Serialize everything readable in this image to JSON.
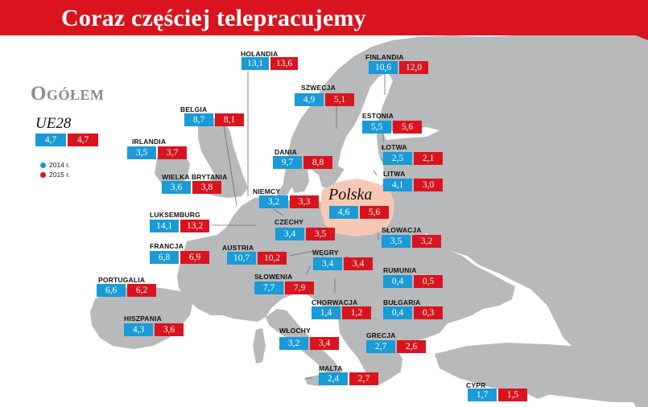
{
  "title": "Coraz częściej telepracujemy",
  "subtitle": "Ogółem",
  "ue": {
    "label": "UE28",
    "v2014": "4,7",
    "v2015": "4,7"
  },
  "legend": {
    "y2014": "2014 r.",
    "y2015": "2015 r."
  },
  "colors": {
    "y2014": "#1a9ad6",
    "y2015": "#d9141e",
    "poland": "#f6c9b4",
    "land": "#b7b9bb",
    "sea": "#ffffff"
  },
  "poland_label": "Polska",
  "chart_data": {
    "type": "table",
    "title": "Coraz częściej telepracujemy",
    "subtitle": "Ogółem",
    "columns": [
      "2014 r.",
      "2015 r."
    ],
    "eu_average": {
      "name": "UE28",
      "y2014": 4.7,
      "y2015": 4.7
    },
    "countries": [
      {
        "name": "Holandia",
        "y2014": 13.1,
        "y2015": 13.6
      },
      {
        "name": "Finlandia",
        "y2014": 10.6,
        "y2015": 12.0
      },
      {
        "name": "Szwecja",
        "y2014": 4.9,
        "y2015": 5.1
      },
      {
        "name": "Belgia",
        "y2014": 8.7,
        "y2015": 8.1
      },
      {
        "name": "Estonia",
        "y2014": 5.5,
        "y2015": 5.6
      },
      {
        "name": "Irlandia",
        "y2014": 3.5,
        "y2015": 3.7
      },
      {
        "name": "Dania",
        "y2014": 9.7,
        "y2015": 8.8
      },
      {
        "name": "Łotwa",
        "y2014": 2.5,
        "y2015": 2.1
      },
      {
        "name": "Wielka Brytania",
        "y2014": 3.6,
        "y2015": 3.8
      },
      {
        "name": "Litwa",
        "y2014": 4.1,
        "y2015": 3.0
      },
      {
        "name": "Niemcy",
        "y2014": 3.2,
        "y2015": 3.3
      },
      {
        "name": "Polska",
        "y2014": 4.6,
        "y2015": 5.6
      },
      {
        "name": "Luksemburg",
        "y2014": 14.1,
        "y2015": 13.2
      },
      {
        "name": "Czechy",
        "y2014": 3.4,
        "y2015": 3.5
      },
      {
        "name": "Słowacja",
        "y2014": 3.5,
        "y2015": 3.2
      },
      {
        "name": "Francja",
        "y2014": 6.8,
        "y2015": 6.9
      },
      {
        "name": "Austria",
        "y2014": 10.7,
        "y2015": 10.2
      },
      {
        "name": "Węgry",
        "y2014": 3.4,
        "y2015": 3.4
      },
      {
        "name": "Rumunia",
        "y2014": 0.4,
        "y2015": 0.5
      },
      {
        "name": "Portugalia",
        "y2014": 6.6,
        "y2015": 6.2
      },
      {
        "name": "Słowenia",
        "y2014": 7.7,
        "y2015": 7.9
      },
      {
        "name": "Chorwacja",
        "y2014": 1.4,
        "y2015": 1.2
      },
      {
        "name": "Bułgaria",
        "y2014": 0.4,
        "y2015": 0.3
      },
      {
        "name": "Hiszpania",
        "y2014": 4.3,
        "y2015": 3.6
      },
      {
        "name": "Włochy",
        "y2014": 3.2,
        "y2015": 3.4
      },
      {
        "name": "Grecja",
        "y2014": 2.7,
        "y2015": 2.6
      },
      {
        "name": "Malta",
        "y2014": 2.4,
        "y2015": 2.7
      },
      {
        "name": "Cypr",
        "y2014": 1.7,
        "y2015": 1.5
      }
    ]
  }
}
